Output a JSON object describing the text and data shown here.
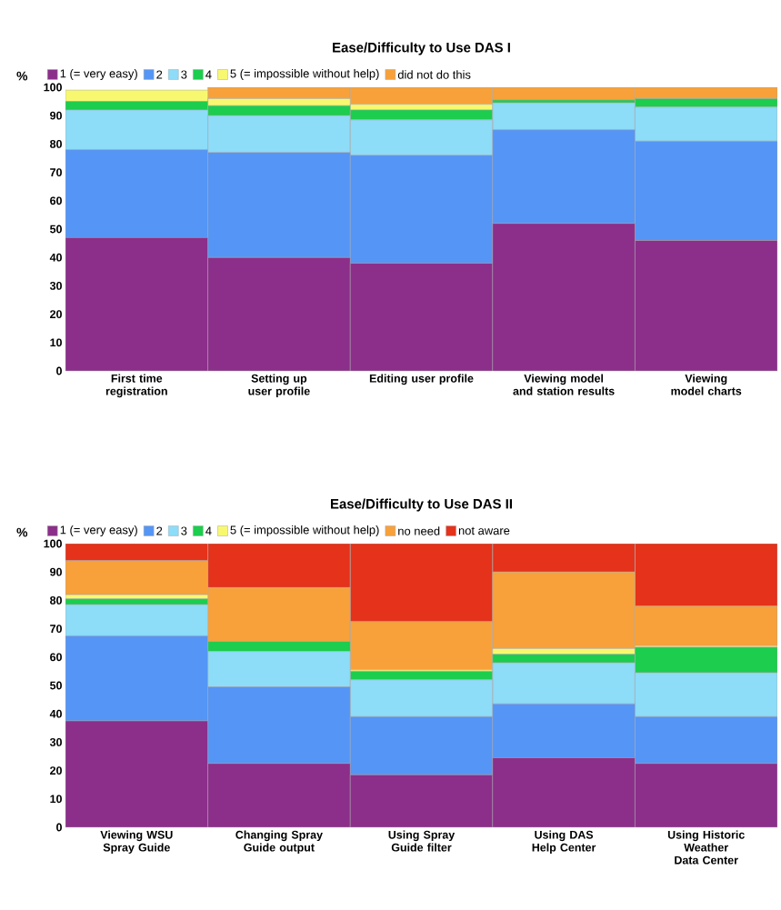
{
  "chart_data": [
    {
      "type": "bar",
      "title": "Ease/Difficulty to Use DAS I",
      "ylabel": "%",
      "stacked": true,
      "legend": "top",
      "grid": false,
      "categories": [
        "First time registration",
        "Setting up user profile",
        "Editing user profile",
        "Viewing model and station results",
        "Viewing model charts"
      ],
      "ylim": [
        0,
        100
      ],
      "yticks": [
        0,
        10,
        20,
        30,
        40,
        50,
        60,
        70,
        80,
        90,
        100
      ],
      "series": [
        {
          "name": "1 (= very easy)",
          "color": "#8b2f8a",
          "values": [
            47,
            40,
            38,
            52,
            46
          ]
        },
        {
          "name": "2",
          "color": "#5595f5",
          "values": [
            31,
            37,
            38,
            33,
            35
          ]
        },
        {
          "name": "3",
          "color": "#8ddcf8",
          "values": [
            14,
            13,
            12.5,
            9.5,
            12
          ]
        },
        {
          "name": "4",
          "color": "#1ccd4e",
          "values": [
            3,
            3.5,
            3.5,
            1,
            3
          ]
        },
        {
          "name": "5 (= impossible without help)",
          "color": "#f8f870",
          "values": [
            4,
            2.5,
            2,
            0,
            0
          ]
        },
        {
          "name": "did not do this",
          "color": "#f8a13a",
          "values": [
            0,
            4,
            6,
            4.5,
            4
          ]
        }
      ]
    },
    {
      "type": "bar",
      "title": "Ease/Difficulty to Use DAS II",
      "ylabel": "%",
      "stacked": true,
      "legend": "top",
      "grid": false,
      "categories": [
        "Viewing WSU Spray Guide",
        "Changing Spray Guide output",
        "Using Spray Guide filter",
        "Using DAS Help Center",
        "Using Historic Weather Data Center"
      ],
      "ylim": [
        0,
        100
      ],
      "yticks": [
        0,
        10,
        20,
        30,
        40,
        50,
        60,
        70,
        80,
        90,
        100
      ],
      "series": [
        {
          "name": "1 (= very easy)",
          "color": "#8b2f8a",
          "values": [
            37.5,
            22.5,
            18.5,
            24.5,
            22.5
          ]
        },
        {
          "name": "2",
          "color": "#5595f5",
          "values": [
            30,
            27,
            20.5,
            19,
            16.5
          ]
        },
        {
          "name": "3",
          "color": "#8ddcf8",
          "values": [
            11,
            12.5,
            13,
            14.5,
            15.5
          ]
        },
        {
          "name": "4",
          "color": "#1ccd4e",
          "values": [
            2,
            3.5,
            3,
            3,
            9
          ]
        },
        {
          "name": "5 (= impossible without help)",
          "color": "#f8f870",
          "values": [
            1.5,
            0,
            0.5,
            2,
            0.5
          ]
        },
        {
          "name": "no need",
          "color": "#f8a13a",
          "values": [
            12,
            19,
            17,
            27,
            14
          ]
        },
        {
          "name": "not aware",
          "color": "#e4321b",
          "values": [
            6,
            15.5,
            27.5,
            10,
            22
          ]
        }
      ]
    }
  ]
}
